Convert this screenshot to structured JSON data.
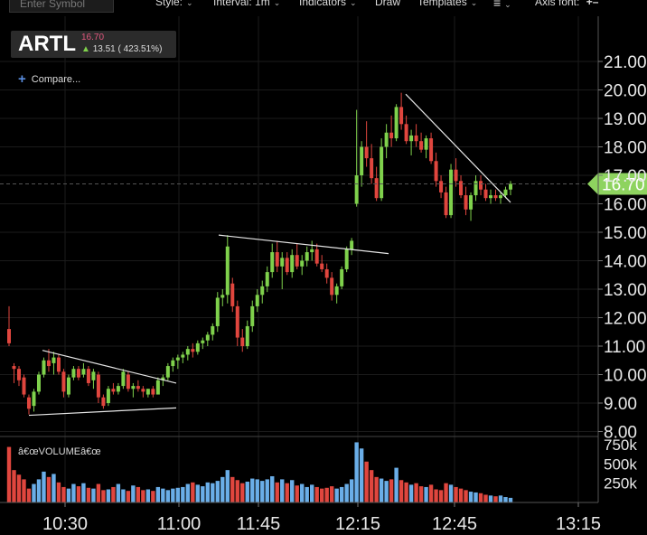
{
  "toolbar": {
    "symbol_placeholder": "Enter Symbol",
    "style_label": "Style:",
    "interval_label": "Interval: 1m",
    "indicators_label": "Indicators",
    "draw_label": "Draw",
    "templates_label": "Templates",
    "menu_icon": "hamburger-icon",
    "axis_font_label": "Axis font:"
  },
  "quote": {
    "symbol": "ARTL",
    "price": "16.70",
    "change": "13.51 ( 423.51%)",
    "direction": "up"
  },
  "compare_label": "Compare...",
  "volume_label": "â€œVOLUMEâ€œ",
  "colors": {
    "up": "#6aaee8",
    "down": "#e0463e",
    "price_tag": "#8ed35f",
    "grid": "#1b1b1b"
  },
  "chart_data": {
    "type": "candlestick",
    "price_axis": {
      "ticks": [
        "8.00",
        "9.00",
        "10.00",
        "11.00",
        "12.00",
        "13.00",
        "14.00",
        "15.00",
        "16.00",
        "17.00",
        "18.00",
        "19.00",
        "20.00",
        "21.00"
      ],
      "range": [
        7.5,
        21.4
      ]
    },
    "time_axis": {
      "labels": [
        "10:30",
        "11:00",
        "11:45",
        "12:15",
        "12:45",
        "13:15"
      ]
    },
    "last_price": "16.70",
    "volume_axis": {
      "ticks": [
        "250k",
        "500k",
        "750k"
      ],
      "max": 900000
    },
    "candles": [
      [
        11.6,
        12.4,
        11.0,
        11.1
      ],
      [
        10.3,
        10.4,
        9.7,
        10.2
      ],
      [
        10.2,
        10.3,
        9.6,
        9.8
      ],
      [
        9.9,
        10.0,
        9.2,
        9.3
      ],
      [
        9.2,
        9.3,
        8.6,
        8.8
      ],
      [
        8.9,
        9.5,
        8.7,
        9.4
      ],
      [
        9.4,
        10.1,
        9.3,
        10.0
      ],
      [
        10.0,
        10.6,
        9.9,
        10.5
      ],
      [
        10.5,
        10.9,
        10.1,
        10.3
      ],
      [
        10.4,
        10.8,
        10.0,
        10.6
      ],
      [
        10.6,
        10.7,
        10.0,
        10.1
      ],
      [
        10.1,
        10.2,
        9.2,
        9.4
      ],
      [
        9.3,
        10.0,
        9.2,
        9.9
      ],
      [
        9.9,
        10.3,
        9.8,
        10.2
      ],
      [
        10.2,
        10.3,
        9.8,
        9.9
      ],
      [
        10.0,
        10.4,
        9.9,
        10.2
      ],
      [
        10.2,
        10.3,
        9.6,
        9.7
      ],
      [
        9.8,
        10.2,
        9.5,
        10.1
      ],
      [
        10.0,
        10.1,
        9.0,
        9.2
      ],
      [
        9.2,
        9.3,
        8.8,
        8.9
      ],
      [
        9.0,
        9.6,
        8.9,
        9.5
      ],
      [
        9.5,
        9.7,
        9.3,
        9.4
      ],
      [
        9.4,
        9.7,
        9.3,
        9.6
      ],
      [
        9.6,
        10.2,
        9.5,
        10.1
      ],
      [
        10.0,
        10.1,
        9.4,
        9.5
      ],
      [
        9.5,
        9.7,
        9.2,
        9.6
      ],
      [
        9.6,
        9.8,
        9.4,
        9.5
      ],
      [
        9.5,
        9.6,
        9.2,
        9.4
      ],
      [
        9.3,
        9.5,
        9.2,
        9.5
      ],
      [
        9.5,
        9.6,
        9.2,
        9.3
      ],
      [
        9.3,
        9.9,
        9.3,
        9.8
      ],
      [
        9.8,
        10.0,
        9.6,
        9.9
      ],
      [
        9.9,
        10.4,
        9.8,
        10.3
      ],
      [
        10.3,
        10.6,
        10.1,
        10.5
      ],
      [
        10.5,
        10.7,
        10.2,
        10.6
      ],
      [
        10.6,
        10.8,
        10.4,
        10.7
      ],
      [
        10.7,
        11.0,
        10.5,
        10.9
      ],
      [
        10.9,
        11.1,
        10.6,
        10.8
      ],
      [
        10.8,
        11.2,
        10.7,
        11.1
      ],
      [
        11.1,
        11.3,
        10.9,
        11.2
      ],
      [
        11.2,
        11.5,
        11.0,
        11.4
      ],
      [
        11.4,
        11.8,
        11.2,
        11.7
      ],
      [
        11.7,
        12.9,
        11.5,
        12.7
      ],
      [
        12.7,
        13.0,
        12.4,
        12.8
      ],
      [
        12.8,
        14.9,
        12.5,
        14.5
      ],
      [
        13.2,
        13.4,
        12.2,
        12.4
      ],
      [
        12.4,
        12.6,
        11.0,
        11.3
      ],
      [
        11.3,
        11.6,
        10.8,
        11.0
      ],
      [
        11.0,
        11.9,
        10.9,
        11.7
      ],
      [
        11.7,
        12.6,
        11.5,
        12.4
      ],
      [
        12.4,
        13.0,
        12.2,
        12.8
      ],
      [
        12.8,
        13.3,
        12.5,
        13.1
      ],
      [
        13.1,
        13.8,
        12.9,
        13.6
      ],
      [
        13.6,
        14.6,
        13.4,
        14.3
      ],
      [
        14.3,
        14.7,
        13.6,
        13.8
      ],
      [
        13.8,
        14.3,
        13.0,
        14.1
      ],
      [
        14.1,
        14.3,
        13.5,
        13.6
      ],
      [
        13.6,
        14.4,
        13.4,
        14.2
      ],
      [
        14.2,
        14.6,
        13.7,
        13.8
      ],
      [
        13.8,
        14.2,
        13.5,
        14.0
      ],
      [
        14.0,
        14.5,
        13.8,
        14.3
      ],
      [
        14.3,
        14.7,
        14.0,
        14.4
      ],
      [
        14.4,
        14.6,
        13.8,
        13.9
      ],
      [
        13.9,
        14.2,
        13.6,
        13.7
      ],
      [
        13.7,
        13.9,
        13.2,
        13.4
      ],
      [
        13.4,
        13.6,
        12.6,
        12.8
      ],
      [
        12.8,
        13.2,
        12.5,
        13.1
      ],
      [
        13.1,
        13.8,
        13.0,
        13.7
      ],
      [
        13.7,
        14.5,
        13.6,
        14.4
      ],
      [
        14.4,
        14.8,
        14.2,
        14.7
      ],
      [
        16.0,
        19.3,
        15.9,
        17.0
      ],
      [
        17.0,
        18.2,
        16.6,
        18.0
      ],
      [
        18.0,
        18.9,
        17.3,
        17.6
      ],
      [
        17.6,
        18.1,
        16.7,
        16.9
      ],
      [
        16.9,
        17.3,
        16.1,
        16.2
      ],
      [
        16.2,
        18.3,
        16.1,
        18.0
      ],
      [
        18.0,
        18.8,
        17.6,
        18.5
      ],
      [
        18.5,
        19.1,
        18.0,
        18.3
      ],
      [
        18.3,
        19.5,
        18.2,
        19.4
      ],
      [
        19.4,
        19.9,
        18.6,
        18.8
      ],
      [
        18.8,
        19.1,
        18.1,
        18.2
      ],
      [
        18.2,
        18.6,
        17.7,
        18.4
      ],
      [
        18.4,
        18.8,
        18.0,
        18.2
      ],
      [
        18.2,
        18.5,
        17.8,
        17.9
      ],
      [
        17.9,
        18.4,
        17.6,
        18.3
      ],
      [
        18.3,
        18.5,
        17.4,
        17.5
      ],
      [
        17.5,
        17.8,
        16.6,
        16.8
      ],
      [
        16.8,
        17.0,
        16.2,
        16.4
      ],
      [
        16.4,
        16.6,
        15.5,
        15.6
      ],
      [
        15.6,
        17.4,
        15.5,
        17.2
      ],
      [
        17.2,
        17.6,
        16.6,
        16.8
      ],
      [
        16.8,
        17.0,
        16.2,
        16.3
      ],
      [
        16.3,
        16.6,
        15.6,
        15.8
      ],
      [
        15.8,
        16.4,
        15.4,
        16.3
      ],
      [
        16.3,
        17.0,
        16.1,
        16.8
      ],
      [
        16.8,
        17.0,
        16.3,
        16.5
      ],
      [
        16.5,
        16.7,
        16.1,
        16.2
      ],
      [
        16.2,
        16.5,
        16.0,
        16.3
      ],
      [
        16.3,
        16.5,
        16.1,
        16.2
      ],
      [
        16.2,
        16.4,
        16.0,
        16.3
      ],
      [
        16.3,
        16.6,
        16.2,
        16.5
      ],
      [
        16.5,
        16.8,
        16.3,
        16.7
      ]
    ],
    "volumes_k": [
      720,
      420,
      360,
      300,
      180,
      240,
      300,
      400,
      330,
      370,
      260,
      200,
      180,
      240,
      210,
      250,
      190,
      180,
      240,
      160,
      170,
      200,
      240,
      170,
      150,
      220,
      200,
      160,
      170,
      150,
      200,
      180,
      160,
      180,
      190,
      200,
      240,
      260,
      230,
      210,
      260,
      250,
      280,
      330,
      420,
      330,
      290,
      250,
      270,
      310,
      300,
      280,
      300,
      340,
      260,
      300,
      250,
      290,
      220,
      240,
      200,
      230,
      200,
      180,
      190,
      210,
      180,
      200,
      240,
      300,
      780,
      700,
      530,
      420,
      330,
      310,
      280,
      300,
      450,
      290,
      260,
      230,
      250,
      210,
      200,
      230,
      170,
      160,
      250,
      230,
      200,
      180,
      160,
      140,
      130,
      120,
      100,
      90,
      80,
      90,
      70,
      60
    ],
    "trendlines": [
      {
        "from": [
          47,
          10.85
        ],
        "to": [
          195,
          9.7
        ]
      },
      {
        "from": [
          32,
          8.57
        ],
        "to": [
          195,
          8.83
        ]
      },
      {
        "from": [
          242,
          14.9
        ],
        "to": [
          430,
          14.25
        ]
      },
      {
        "from": [
          449,
          19.85
        ],
        "to": [
          565,
          16.05
        ]
      }
    ]
  }
}
